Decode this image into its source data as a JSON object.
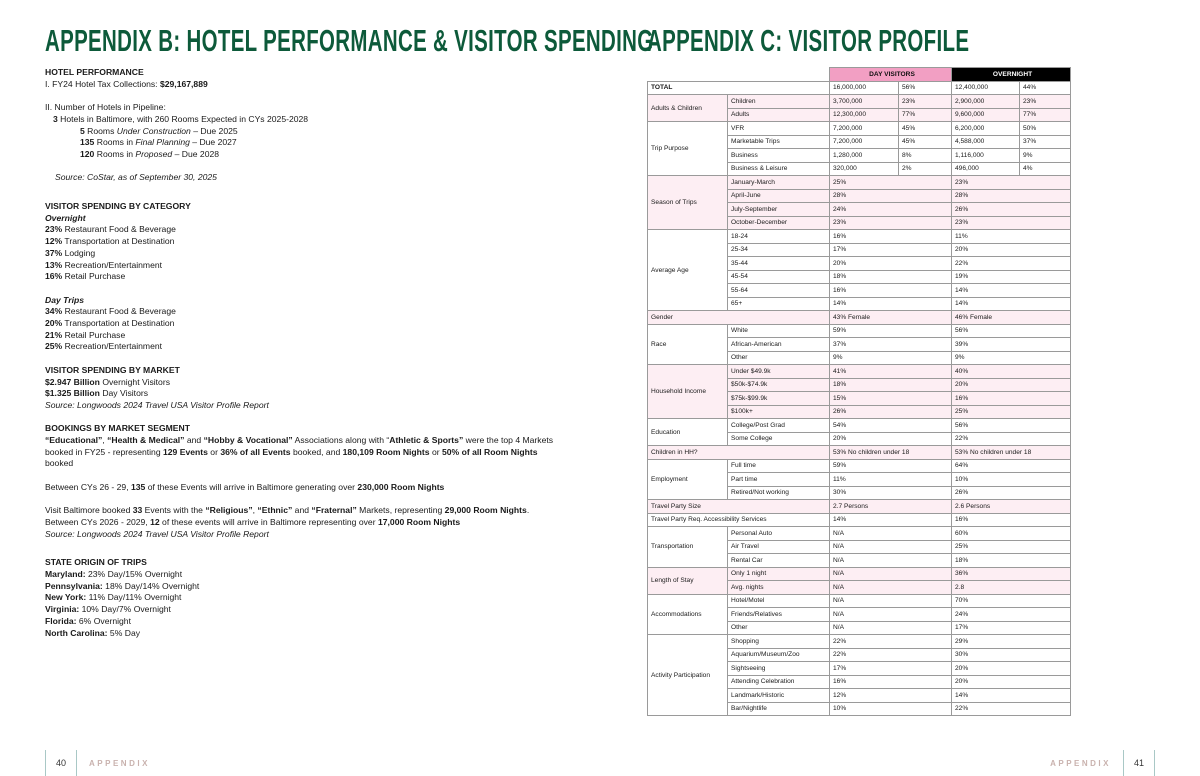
{
  "left_page": {
    "title": "APPENDIX B: HOTEL PERFORMANCE & VISITOR SPENDING",
    "paragraphs": [
      {
        "cls": "",
        "segs": [
          {
            "t": "HOTEL PERFORMANCE",
            "b": true
          }
        ]
      },
      {
        "cls": "",
        "segs": [
          {
            "t": "I. FY24 Hotel Tax Collections:  "
          },
          {
            "t": "$29,167,889",
            "b": true
          }
        ]
      },
      {
        "cls": "gap"
      },
      {
        "cls": "",
        "segs": [
          {
            "t": "II. Number of Hotels in Pipeline:"
          }
        ]
      },
      {
        "cls": "ind1",
        "segs": [
          {
            "t": "3",
            "b": true
          },
          {
            "t": " Hotels in Baltimore, with 260 Rooms Expected in CYs 2025-2028"
          }
        ]
      },
      {
        "cls": "ind2",
        "segs": [
          {
            "t": "5",
            "b": true
          },
          {
            "t": " Rooms "
          },
          {
            "t": "Under Construction",
            "i": true
          },
          {
            "t": " – Due 2025"
          }
        ]
      },
      {
        "cls": "ind2",
        "segs": [
          {
            "t": "135",
            "b": true
          },
          {
            "t": " Rooms in "
          },
          {
            "t": "Final Planning",
            "i": true
          },
          {
            "t": " – Due 2027"
          }
        ]
      },
      {
        "cls": "ind2",
        "segs": [
          {
            "t": "120",
            "b": true
          },
          {
            "t": " Rooms in "
          },
          {
            "t": "Proposed",
            "i": true
          },
          {
            "t": " – Due 2028"
          }
        ]
      },
      {
        "cls": "gap"
      },
      {
        "cls": "ind0",
        "segs": [
          {
            "t": "Source: CoStar, as of September 30, 2025",
            "i": true
          }
        ]
      },
      {
        "cls": "gap2"
      },
      {
        "cls": "",
        "segs": [
          {
            "t": "VISITOR SPENDING BY CATEGORY",
            "b": true
          }
        ]
      },
      {
        "cls": "",
        "segs": [
          {
            "t": "Overnight",
            "b": true,
            "i": true
          }
        ]
      },
      {
        "cls": "",
        "segs": [
          {
            "t": "23%",
            "b": true
          },
          {
            "t": " Restaurant Food & Beverage"
          }
        ]
      },
      {
        "cls": "",
        "segs": [
          {
            "t": "12%",
            "b": true
          },
          {
            "t": " Transportation at Destination"
          }
        ]
      },
      {
        "cls": "",
        "segs": [
          {
            "t": "37%",
            "b": true
          },
          {
            "t": " Lodging"
          }
        ]
      },
      {
        "cls": "",
        "segs": [
          {
            "t": "13%",
            "b": true
          },
          {
            "t": " Recreation/Entertainment"
          }
        ]
      },
      {
        "cls": "",
        "segs": [
          {
            "t": "16%",
            "b": true
          },
          {
            "t": " Retail Purchase"
          }
        ]
      },
      {
        "cls": "gap"
      },
      {
        "cls": "",
        "segs": [
          {
            "t": "Day Trips",
            "b": true,
            "i": true
          }
        ]
      },
      {
        "cls": "",
        "segs": [
          {
            "t": "34%",
            "b": true
          },
          {
            "t": " Restaurant Food & Beverage"
          }
        ]
      },
      {
        "cls": "",
        "segs": [
          {
            "t": "20%",
            "b": true
          },
          {
            "t": " Transportation at Destination"
          }
        ]
      },
      {
        "cls": "",
        "segs": [
          {
            "t": "21%",
            "b": true
          },
          {
            "t": " Retail Purchase"
          }
        ]
      },
      {
        "cls": "",
        "segs": [
          {
            "t": "25%",
            "b": true
          },
          {
            "t": " Recreation/Entertainment"
          }
        ]
      },
      {
        "cls": "gap"
      },
      {
        "cls": "",
        "segs": [
          {
            "t": "VISITOR SPENDING BY MARKET",
            "b": true
          }
        ]
      },
      {
        "cls": "",
        "segs": [
          {
            "t": "$2.947 Billion",
            "b": true
          },
          {
            "t": " Overnight Visitors"
          }
        ]
      },
      {
        "cls": "",
        "segs": [
          {
            "t": "$1.325 Billion",
            "b": true
          },
          {
            "t": " Day Visitors"
          }
        ]
      },
      {
        "cls": "",
        "segs": [
          {
            "t": "Source: Longwoods 2024 Travel USA Visitor Profile Report",
            "i": true
          }
        ]
      },
      {
        "cls": "gap"
      },
      {
        "cls": "",
        "segs": [
          {
            "t": "BOOKINGS BY MARKET SEGMENT",
            "b": true
          }
        ]
      },
      {
        "cls": "",
        "segs": [
          {
            "t": "“Educational”",
            "b": true
          },
          {
            "t": ", "
          },
          {
            "t": "“Health & Medical”",
            "b": true
          },
          {
            "t": " and "
          },
          {
            "t": "“Hobby & Vocational”",
            "b": true
          },
          {
            "t": " Associations along with “"
          },
          {
            "t": "Athletic & Sports”",
            "b": true
          },
          {
            "t": " were the top 4 Markets booked in FY25 - representing "
          },
          {
            "t": "129 Events",
            "b": true
          },
          {
            "t": " or "
          },
          {
            "t": "36% of all Events",
            "b": true
          },
          {
            "t": " booked, and "
          },
          {
            "t": "180,109 Room Nights",
            "b": true
          },
          {
            "t": " or "
          },
          {
            "t": "50% of all Room Nights",
            "b": true
          },
          {
            "t": " booked"
          }
        ]
      },
      {
        "cls": "gap"
      },
      {
        "cls": "",
        "segs": [
          {
            "t": "Between CYs 26 - 29, "
          },
          {
            "t": "135",
            "b": true
          },
          {
            "t": " of these Events will arrive in Baltimore generating over "
          },
          {
            "t": "230,000 Room Nights",
            "b": true
          }
        ]
      },
      {
        "cls": "gap"
      },
      {
        "cls": "",
        "segs": [
          {
            "t": "Visit Baltimore booked "
          },
          {
            "t": "33",
            "b": true
          },
          {
            "t": " Events with the "
          },
          {
            "t": "“Religious”",
            "b": true
          },
          {
            "t": ", "
          },
          {
            "t": "“Ethnic”",
            "b": true
          },
          {
            "t": " and "
          },
          {
            "t": "“Fraternal”",
            "b": true
          },
          {
            "t": " Markets, representing "
          },
          {
            "t": "29,000 Room Nights",
            "b": true
          },
          {
            "t": ". Between CYs 2026 - 2029, "
          },
          {
            "t": "12",
            "b": true
          },
          {
            "t": " of these events will arrive in Baltimore representing over "
          },
          {
            "t": "17,000 Room Nights",
            "b": true
          }
        ]
      },
      {
        "cls": "",
        "segs": [
          {
            "t": "Source: Longwoods 2024 Travel USA Visitor Profile Report",
            "i": true
          }
        ]
      },
      {
        "cls": "gap2"
      },
      {
        "cls": "",
        "segs": [
          {
            "t": "STATE ORIGIN OF TRIPS",
            "b": true
          }
        ]
      },
      {
        "cls": "",
        "segs": [
          {
            "t": "Maryland:",
            "b": true
          },
          {
            "t": " 23% Day/15% Overnight"
          }
        ]
      },
      {
        "cls": "",
        "segs": [
          {
            "t": "Pennsylvania:",
            "b": true
          },
          {
            "t": " 18% Day/14% Overnight"
          }
        ]
      },
      {
        "cls": "",
        "segs": [
          {
            "t": "New York:",
            "b": true
          },
          {
            "t": " 11% Day/11% Overnight"
          }
        ]
      },
      {
        "cls": "",
        "segs": [
          {
            "t": "Virginia:",
            "b": true
          },
          {
            "t": " 10% Day/7% Overnight"
          }
        ]
      },
      {
        "cls": "",
        "segs": [
          {
            "t": "Florida:",
            "b": true
          },
          {
            "t": " 6% Overnight"
          }
        ]
      },
      {
        "cls": "",
        "segs": [
          {
            "t": "North Carolina:",
            "b": true
          },
          {
            "t": " 5% Day"
          }
        ]
      }
    ],
    "footer": {
      "page": "40",
      "label": "APPENDIX"
    }
  },
  "right_page": {
    "title": "APPENDIX C: VISITOR PROFILE",
    "table": {
      "headers": {
        "day": "DAY VISITORS",
        "overnight": "OVERNIGHT"
      },
      "header_colors": {
        "day": "#f29fc3",
        "overnight": "#000000",
        "shade": "#fdeef3"
      },
      "groups": [
        {
          "label": "TOTAL",
          "bold": true,
          "shaded": false,
          "rows": [
            {
              "day": "16,000,000",
              "day_pct": "56%",
              "ov": "12,400,000",
              "ov_pct": "44%"
            }
          ]
        },
        {
          "label": "Adults & Children",
          "shaded": true,
          "rows": [
            {
              "sub": "Children",
              "day": "3,700,000",
              "day_pct": "23%",
              "ov": "2,900,000",
              "ov_pct": "23%"
            },
            {
              "sub": "Adults",
              "day": "12,300,000",
              "day_pct": "77%",
              "ov": "9,600,000",
              "ov_pct": "77%"
            }
          ]
        },
        {
          "label": "Trip Purpose",
          "shaded": false,
          "rows": [
            {
              "sub": "VFR",
              "day": "7,200,000",
              "day_pct": "45%",
              "ov": "6,200,000",
              "ov_pct": "50%"
            },
            {
              "sub": "Marketable Trips",
              "day": "7,200,000",
              "day_pct": "45%",
              "ov": "4,588,000",
              "ov_pct": "37%"
            },
            {
              "sub": "Business",
              "day": "1,280,000",
              "day_pct": "8%",
              "ov": "1,116,000",
              "ov_pct": "9%"
            },
            {
              "sub": "Business & Leisure",
              "day": "320,000",
              "day_pct": "2%",
              "ov": "496,000",
              "ov_pct": "4%"
            }
          ]
        },
        {
          "label": "Season of Trips",
          "shaded": true,
          "rows": [
            {
              "sub": "January-March",
              "day": "25%",
              "ov": "23%"
            },
            {
              "sub": "April-June",
              "day": "28%",
              "ov": "28%"
            },
            {
              "sub": "July-September",
              "day": "24%",
              "ov": "26%"
            },
            {
              "sub": "October-December",
              "day": "23%",
              "ov": "23%"
            }
          ]
        },
        {
          "label": "Average Age",
          "shaded": false,
          "rows": [
            {
              "sub": "18-24",
              "day": "16%",
              "ov": "11%"
            },
            {
              "sub": "25-34",
              "day": "17%",
              "ov": "20%"
            },
            {
              "sub": "35-44",
              "day": "20%",
              "ov": "22%"
            },
            {
              "sub": "45-54",
              "day": "18%",
              "ov": "19%"
            },
            {
              "sub": "55-64",
              "day": "16%",
              "ov": "14%"
            },
            {
              "sub": "65+",
              "day": "14%",
              "ov": "14%"
            }
          ]
        },
        {
          "label": "Gender",
          "shaded": true,
          "rows": [
            {
              "day": "43% Female",
              "ov": "46% Female"
            }
          ]
        },
        {
          "label": "Race",
          "shaded": false,
          "rows": [
            {
              "sub": " White",
              "day": "59%",
              "ov": "56%"
            },
            {
              "sub": " African-American",
              "day": "37%",
              "ov": "39%"
            },
            {
              "sub": " Other",
              "day": "9%",
              "ov": "9%"
            }
          ]
        },
        {
          "label": "Household Income",
          "shaded": true,
          "rows": [
            {
              "sub": "Under $49.9k",
              "day": "41%",
              "ov": "40%"
            },
            {
              "sub": "$50k-$74.9k",
              "day": "18%",
              "ov": "20%"
            },
            {
              "sub": "$75k-$99.9k",
              "day": "15%",
              "ov": "16%"
            },
            {
              "sub": "$100k+",
              "day": "26%",
              "ov": "25%"
            }
          ]
        },
        {
          "label": "Education",
          "shaded": false,
          "rows": [
            {
              "sub": "College/Post Grad",
              "day": "54%",
              "ov": "56%"
            },
            {
              "sub": "Some College",
              "day": "20%",
              "ov": "22%"
            }
          ]
        },
        {
          "label": "Children in HH?",
          "shaded": true,
          "rows": [
            {
              "day": "53% No children under 18",
              "ov": "53% No children under 18"
            }
          ]
        },
        {
          "label": "Employment",
          "shaded": false,
          "rows": [
            {
              "sub": "Full time",
              "day": "59%",
              "ov": "64%"
            },
            {
              "sub": "Part time",
              "day": "11%",
              "ov": "10%"
            },
            {
              "sub": "Retired/Not working",
              "day": "30%",
              "ov": "26%"
            }
          ]
        },
        {
          "label": "Travel Party Size",
          "shaded": true,
          "rows": [
            {
              "day": "2.7 Persons",
              "ov": "2.6 Persons"
            }
          ]
        },
        {
          "label": "Travel Party Req. Accessibility Services",
          "shaded": false,
          "rows": [
            {
              "day": "14%",
              "ov": "16%"
            }
          ]
        },
        {
          "label": "Transportation",
          "shaded": false,
          "rows": [
            {
              "sub": "Personal Auto",
              "day": "N/A",
              "ov": "60%"
            },
            {
              "sub": "Air Travel",
              "day": "N/A",
              "ov": "25%"
            },
            {
              "sub": "Rental Car",
              "day": "N/A",
              "ov": "18%"
            }
          ]
        },
        {
          "label": "Length of Stay",
          "shaded": true,
          "rows": [
            {
              "sub": "Only 1 night",
              "day": "N/A",
              "ov": "36%"
            },
            {
              "sub": "Avg. nights",
              "day": "N/A",
              "ov": "2.8"
            }
          ]
        },
        {
          "label": "Accommodations",
          "shaded": false,
          "rows": [
            {
              "sub": "Hotel/Motel",
              "day": "N/A",
              "ov": "70%"
            },
            {
              "sub": "Friends/Relatives",
              "day": "N/A",
              "ov": "24%"
            },
            {
              "sub": "Other",
              "day": "N/A",
              "ov": "17%"
            }
          ]
        },
        {
          "label": "Activity Participation",
          "shaded": false,
          "rows": [
            {
              "sub": "Shopping",
              "day": "22%",
              "ov": "29%"
            },
            {
              "sub": "Aquarium/Museum/Zoo",
              "day": "22%",
              "ov": "30%"
            },
            {
              "sub": "Sightseeing",
              "day": "17%",
              "ov": "20%"
            },
            {
              "sub": "Attending Celebration",
              "day": "16%",
              "ov": "20%"
            },
            {
              "sub": "Landmark/Historic",
              "day": "12%",
              "ov": "14%"
            },
            {
              "sub": "Bar/Nightlife",
              "day": "10%",
              "ov": "22%"
            }
          ]
        }
      ]
    },
    "footer": {
      "page": "41",
      "label": "APPENDIX"
    }
  }
}
